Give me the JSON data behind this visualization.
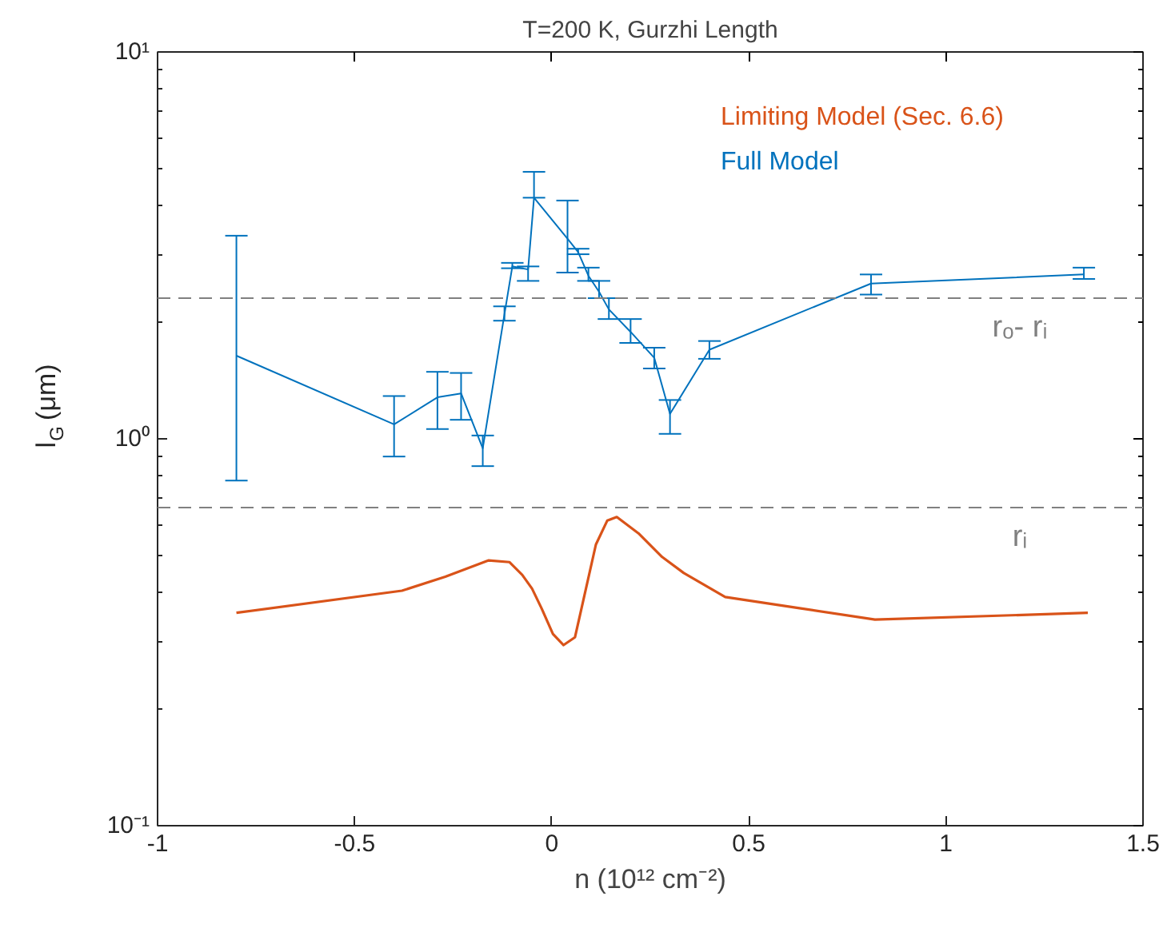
{
  "chart_data": {
    "type": "line",
    "title": "T=200 K, Gurzhi Length",
    "xlabel": "n (10¹² cm⁻²)",
    "ylabel": "l$_{G}$ (μm)",
    "log": "y",
    "xlim": [
      -1,
      1.5
    ],
    "ylim": [
      0.1,
      10
    ],
    "xticks": [
      -1,
      -0.5,
      0,
      0.5,
      1,
      1.5
    ],
    "yticks": [
      {
        "value": 0.1,
        "label": "10⁻¹"
      },
      {
        "value": 1,
        "label": "10⁰"
      },
      {
        "value": 10,
        "label": "10¹"
      }
    ],
    "grid": false,
    "legend": "top right",
    "marker": "none",
    "line_style": "solid",
    "series": [
      {
        "name": "Limiting Model (Sec. 6.6)",
        "color": "#d95319",
        "x": [
          -0.8,
          -0.38,
          -0.27,
          -0.16,
          -0.107,
          -0.075,
          -0.05,
          -0.026,
          0.003,
          0.03,
          0.059,
          0.112,
          0.141,
          0.165,
          0.22,
          0.28,
          0.335,
          0.44,
          0.82,
          1.36
        ],
        "values": [
          0.355,
          0.405,
          0.44,
          0.485,
          0.48,
          0.445,
          0.41,
          0.365,
          0.313,
          0.293,
          0.307,
          0.533,
          0.615,
          0.628,
          0.57,
          0.495,
          0.45,
          0.39,
          0.341,
          0.355
        ]
      },
      {
        "name": "Full Model",
        "color": "#0072bd",
        "x": [
          -0.8,
          -0.4,
          -0.29,
          -0.23,
          -0.175,
          -0.12,
          -0.1,
          -0.06,
          -0.045,
          0.04,
          0.067,
          0.093,
          0.12,
          0.145,
          0.2,
          0.26,
          0.3,
          0.4,
          0.81,
          1.35
        ],
        "values": [
          1.64,
          1.09,
          1.28,
          1.31,
          0.945,
          2.1,
          2.79,
          2.74,
          4.2,
          3.29,
          3.04,
          2.64,
          2.4,
          2.16,
          1.89,
          1.62,
          1.16,
          1.7,
          2.52,
          2.66
        ],
        "errors": [
          [
            0.78,
            3.35
          ],
          [
            0.9,
            1.29
          ],
          [
            1.06,
            1.49
          ],
          [
            1.12,
            1.48
          ],
          [
            0.85,
            1.02
          ],
          [
            2.02,
            2.2
          ],
          [
            2.76,
            2.85
          ],
          [
            2.56,
            2.79
          ],
          [
            4.2,
            4.9
          ],
          [
            2.69,
            4.13
          ],
          [
            3.0,
            3.1
          ],
          [
            2.56,
            2.77
          ],
          [
            2.31,
            2.56
          ],
          [
            2.04,
            2.31
          ],
          [
            1.77,
            2.04
          ],
          [
            1.52,
            1.72
          ],
          [
            1.03,
            1.26
          ],
          [
            1.61,
            1.79
          ],
          [
            2.36,
            2.66
          ],
          [
            2.59,
            2.77
          ]
        ]
      }
    ],
    "ref_lines": [
      {
        "axis": "y",
        "value": 2.31,
        "label": "rₒ- rᵢ",
        "color": "#808080",
        "line_style": "dashed"
      },
      {
        "axis": "y",
        "value": 0.664,
        "label": "rᵢ",
        "color": "#808080",
        "line_style": "dashed"
      }
    ]
  }
}
